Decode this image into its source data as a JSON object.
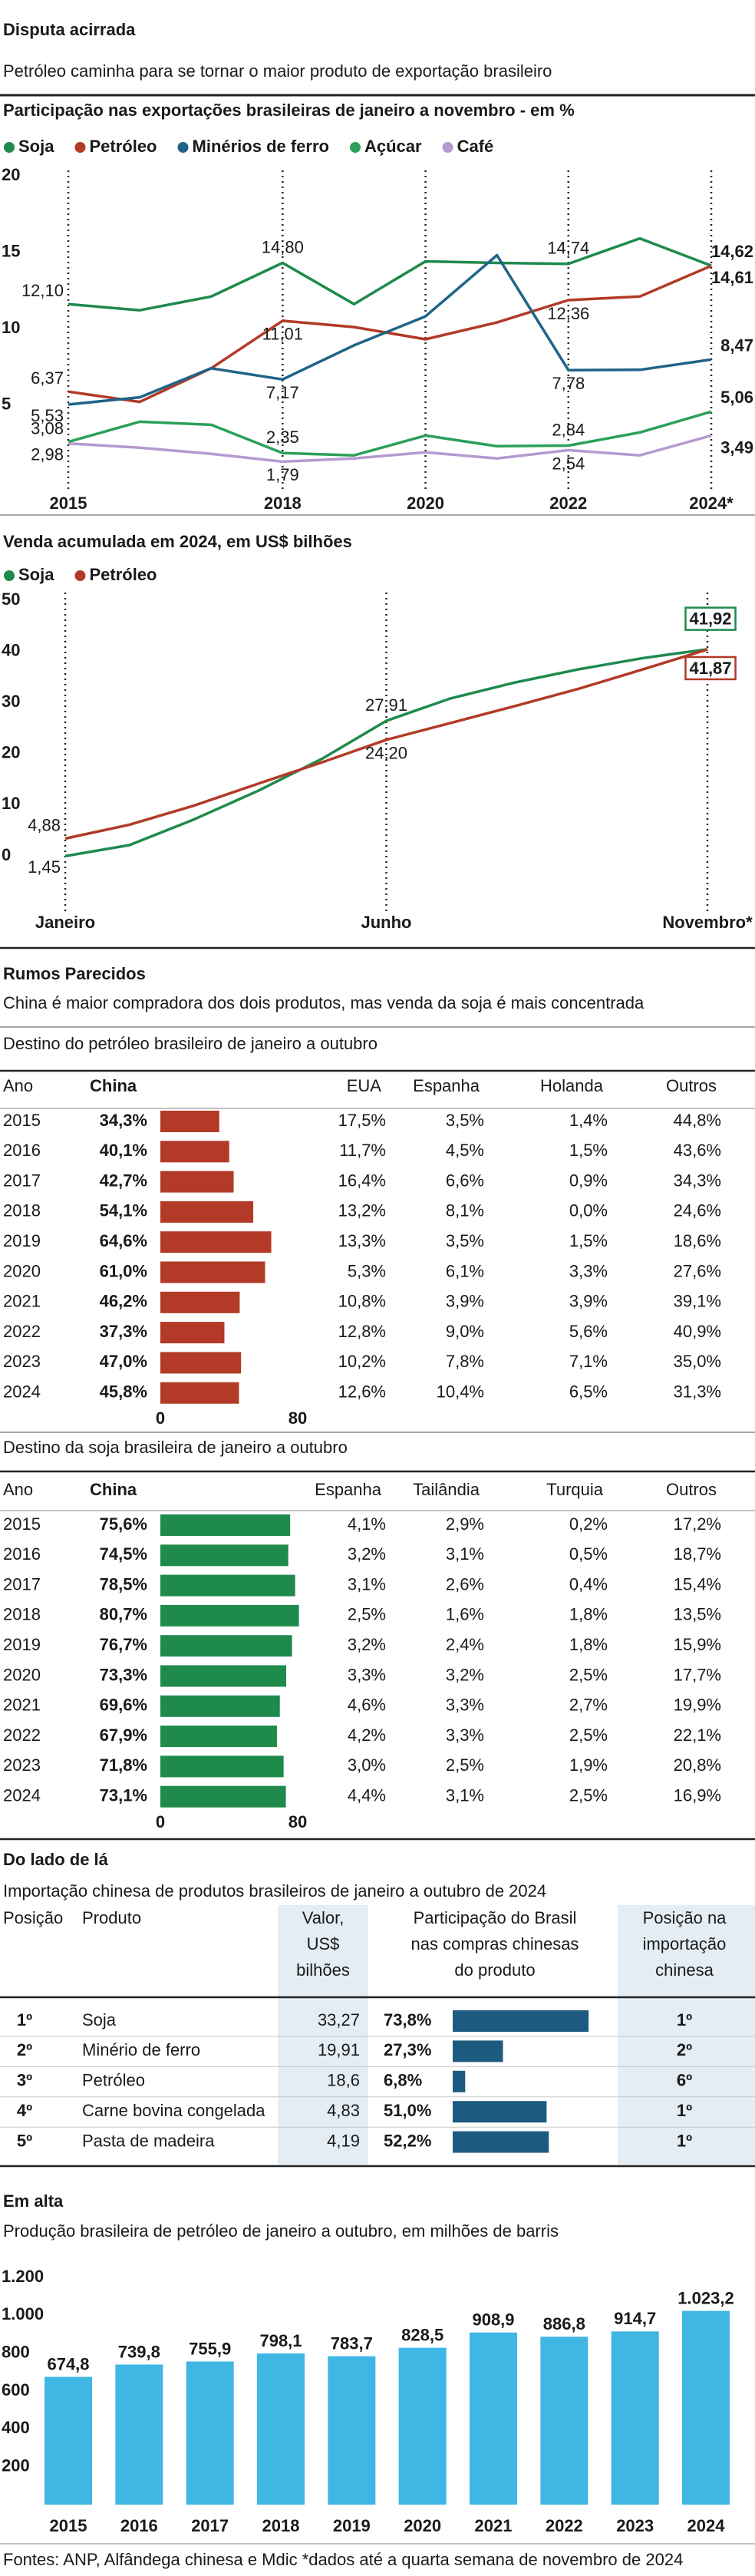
{
  "header": {
    "title": "Disputa acirrada",
    "subtitle": "Petróleo caminha para se tornar o maior produto de exportação brasileiro"
  },
  "chart_data": [
    {
      "type": "line",
      "title": "Participação nas exportações brasileiras de janeiro a novembro - em %",
      "categories": [
        "2015",
        null,
        null,
        "2018",
        null,
        "2020",
        null,
        "2022",
        null,
        "2024*"
      ],
      "ylim": [
        0,
        20
      ],
      "yticks": [
        5,
        10,
        15,
        20
      ],
      "series": [
        {
          "name": "Soja",
          "color": "#1e8a4c",
          "values": [
            12.1,
            11.7,
            12.6,
            14.8,
            12.1,
            14.9,
            14.8,
            14.74,
            16.4,
            14.62
          ],
          "value_labels": [
            "12,10",
            null,
            null,
            "14,80",
            null,
            null,
            null,
            "14,74",
            null,
            "14,62"
          ]
        },
        {
          "name": "Petróleo",
          "color": "#b23a26",
          "values": [
            6.37,
            5.7,
            7.9,
            11.01,
            10.6,
            9.8,
            10.9,
            12.36,
            12.6,
            14.61
          ],
          "value_labels": [
            "6,37",
            null,
            null,
            "11,01",
            null,
            null,
            null,
            "12,36",
            null,
            "14,61"
          ]
        },
        {
          "name": "Minérios de ferro",
          "color": "#1f6388",
          "values": [
            5.53,
            6.0,
            7.9,
            7.17,
            9.4,
            11.3,
            15.3,
            7.78,
            7.8,
            8.47
          ],
          "value_labels": [
            "5,53",
            null,
            null,
            "7,17",
            null,
            null,
            null,
            "7,78",
            null,
            "8,47"
          ]
        },
        {
          "name": "Açúcar",
          "color": "#2aa05a",
          "values": [
            3.08,
            4.4,
            4.2,
            2.35,
            2.2,
            3.5,
            2.8,
            2.84,
            3.7,
            5.06
          ],
          "value_labels": [
            "3,08",
            null,
            null,
            "2,35",
            null,
            null,
            null,
            "2,84",
            null,
            "5,06"
          ]
        },
        {
          "name": "Café",
          "color": "#b49ad0",
          "values": [
            2.98,
            2.7,
            2.3,
            1.79,
            2.0,
            2.4,
            2.0,
            2.54,
            2.2,
            3.49
          ],
          "value_labels": [
            "2,98",
            null,
            null,
            "1,79",
            null,
            null,
            null,
            "2,54",
            null,
            "3,49"
          ]
        }
      ]
    },
    {
      "type": "line",
      "title": "Venda acumulada em 2024, em US$ bilhões",
      "categories": [
        "Janeiro",
        null,
        null,
        null,
        null,
        "Junho",
        null,
        null,
        null,
        null,
        "Novembro*"
      ],
      "ylim": [
        0,
        50
      ],
      "yticks": [
        0,
        10,
        20,
        30,
        40,
        50
      ],
      "series": [
        {
          "name": "Soja",
          "color": "#1e8a4c",
          "values": [
            1.45,
            3.6,
            8.6,
            14.2,
            20.5,
            27.91,
            32.3,
            35.4,
            38.0,
            40.2,
            41.92
          ],
          "value_labels": [
            "1,45",
            null,
            null,
            null,
            null,
            "27,91",
            null,
            null,
            null,
            null,
            "41,92"
          ]
        },
        {
          "name": "Petróleo",
          "color": "#b23a26",
          "values": [
            4.88,
            7.6,
            11.3,
            15.6,
            19.8,
            24.2,
            27.5,
            30.8,
            34.2,
            38.0,
            41.87
          ],
          "value_labels": [
            "4,88",
            null,
            null,
            null,
            null,
            "24,20",
            null,
            null,
            null,
            null,
            "41,87"
          ]
        }
      ]
    },
    {
      "type": "bar",
      "heading": "Em alta",
      "title": "Produção brasileira de petróleo de janeiro a outubro, em milhões de barris",
      "categories": [
        "2015",
        "2016",
        "2017",
        "2018",
        "2019",
        "2020",
        "2021",
        "2022",
        "2023",
        "2024"
      ],
      "values": [
        674.8,
        739.8,
        755.9,
        798.1,
        783.7,
        828.5,
        908.9,
        886.8,
        914.7,
        1023.2
      ],
      "value_labels": [
        "674,8",
        "739,8",
        "755,9",
        "798,1",
        "783,7",
        "828,5",
        "908,9",
        "886,8",
        "914,7",
        "1.023,2"
      ],
      "color": "#3fb6e3",
      "ylim": [
        0,
        1200
      ],
      "yticks": [
        200,
        400,
        600,
        800,
        {
          "value": 1000,
          "label": "1.000"
        },
        {
          "value": 1200,
          "label": "1.200"
        }
      ]
    }
  ],
  "rumos": {
    "heading": "Rumos Parecidos",
    "subtitle": "China é maior compradora dos dois produtos, mas venda da soja é mais concentrada",
    "tables": [
      {
        "title": "Destino do petróleo brasileiro de janeiro a outubro",
        "columns": [
          "Ano",
          "China",
          "EUA",
          "Espanha",
          "Holanda",
          "Outros"
        ],
        "years": [
          "2015",
          "2016",
          "2017",
          "2018",
          "2019",
          "2020",
          "2021",
          "2022",
          "2023",
          "2024"
        ],
        "china": {
          "values": [
            34.3,
            40.1,
            42.7,
            54.1,
            64.6,
            61.0,
            46.2,
            37.3,
            47.0,
            45.8
          ],
          "value_labels": [
            "34,3%",
            "40,1%",
            "42,7%",
            "54,1%",
            "64,6%",
            "61,0%",
            "46,2%",
            "37,3%",
            "47,0%",
            "45,8%"
          ],
          "xlim": [
            0,
            80
          ],
          "xticks": [
            0,
            80
          ],
          "color": "#b23a26"
        },
        "others": [
          [
            "17,5%",
            "3,5%",
            "1,4%",
            "44,8%"
          ],
          [
            "11,7%",
            "4,5%",
            "1,5%",
            "43,6%"
          ],
          [
            "16,4%",
            "6,6%",
            "0,9%",
            "34,3%"
          ],
          [
            "13,2%",
            "8,1%",
            "0,0%",
            "24,6%"
          ],
          [
            "13,3%",
            "3,5%",
            "1,5%",
            "18,6%"
          ],
          [
            "5,3%",
            "6,1%",
            "3,3%",
            "27,6%"
          ],
          [
            "10,8%",
            "3,9%",
            "3,9%",
            "39,1%"
          ],
          [
            "12,8%",
            "9,0%",
            "5,6%",
            "40,9%"
          ],
          [
            "10,2%",
            "7,8%",
            "7,1%",
            "35,0%"
          ],
          [
            "12,6%",
            "10,4%",
            "6,5%",
            "31,3%"
          ]
        ]
      },
      {
        "title": "Destino da soja brasileira de janeiro a outubro",
        "columns": [
          "Ano",
          "China",
          "Espanha",
          "Tailândia",
          "Turquia",
          "Outros"
        ],
        "years": [
          "2015",
          "2016",
          "2017",
          "2018",
          "2019",
          "2020",
          "2021",
          "2022",
          "2023",
          "2024"
        ],
        "china": {
          "values": [
            75.6,
            74.5,
            78.5,
            80.7,
            76.7,
            73.3,
            69.6,
            67.9,
            71.8,
            73.1
          ],
          "value_labels": [
            "75,6%",
            "74,5%",
            "78,5%",
            "80,7%",
            "76,7%",
            "73,3%",
            "69,6%",
            "67,9%",
            "71,8%",
            "73,1%"
          ],
          "xlim": [
            0,
            80
          ],
          "xticks": [
            0,
            80
          ],
          "color": "#1e8a4c"
        },
        "others": [
          [
            "4,1%",
            "2,9%",
            "0,2%",
            "17,2%"
          ],
          [
            "3,2%",
            "3,1%",
            "0,5%",
            "18,7%"
          ],
          [
            "3,1%",
            "2,6%",
            "0,4%",
            "15,4%"
          ],
          [
            "2,5%",
            "1,6%",
            "1,8%",
            "13,5%"
          ],
          [
            "3,2%",
            "2,4%",
            "1,8%",
            "15,9%"
          ],
          [
            "3,3%",
            "3,2%",
            "2,5%",
            "17,7%"
          ],
          [
            "4,6%",
            "3,3%",
            "2,7%",
            "19,9%"
          ],
          [
            "4,2%",
            "3,3%",
            "2,5%",
            "22,1%"
          ],
          [
            "3,0%",
            "2,5%",
            "1,9%",
            "20,8%"
          ],
          [
            "4,4%",
            "3,1%",
            "2,5%",
            "16,9%"
          ]
        ]
      }
    ]
  },
  "import_table": {
    "heading": "Do lado de lá",
    "title": "Importação chinesa de produtos brasileiros de janeiro a outubro de 2024",
    "columns": [
      [
        "Posição"
      ],
      [
        "Produto"
      ],
      [
        "Valor,",
        "US$",
        "bilhões"
      ],
      [
        "Participação do Brasil",
        "nas compras chinesas",
        "do produto"
      ],
      [
        "Posição na",
        "importação",
        "chinesa"
      ]
    ],
    "rows": [
      {
        "rank": "1º",
        "product": "Soja",
        "value": "33,27",
        "china_rank": "1º"
      },
      {
        "rank": "2º",
        "product": "Minério de ferro",
        "value": "19,91",
        "china_rank": "2º"
      },
      {
        "rank": "3º",
        "product": "Petróleo",
        "value": "18,6",
        "china_rank": "6º"
      },
      {
        "rank": "4º",
        "product": "Carne bovina congelada",
        "value": "4,83",
        "china_rank": "1º"
      },
      {
        "rank": "5º",
        "product": "Pasta de madeira",
        "value": "4,19",
        "china_rank": "1º"
      }
    ],
    "share": {
      "values": [
        73.8,
        27.3,
        6.8,
        51.0,
        52.2
      ],
      "value_labels": [
        "73,8%",
        "27,3%",
        "6,8%",
        "51,0%",
        "52,2%"
      ],
      "xlim": [
        0,
        100
      ],
      "color": "#1d5a80"
    }
  },
  "footer": "Fontes: ANP, Alfândega chinesa e Mdic *dados até a quarta semana de novembro de 2024"
}
